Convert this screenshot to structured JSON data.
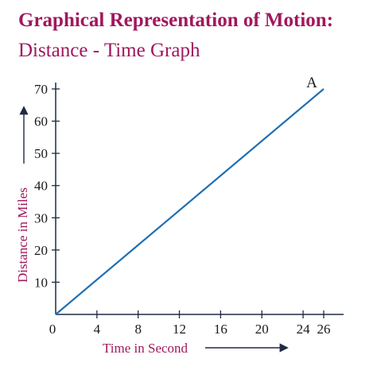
{
  "title": "Graphical Representation of Motion:",
  "subtitle": "Distance - Time Graph",
  "colors": {
    "accent": "#a0185e",
    "line": "#1f6fb2",
    "axis": "#1f2a44",
    "text": "#1a1a1a"
  },
  "chart_data": {
    "type": "line",
    "xlabel": "Time in Second",
    "ylabel": "Distance in Miles",
    "x_ticks": [
      0,
      4,
      8,
      12,
      16,
      20,
      24,
      26
    ],
    "y_ticks": [
      10,
      20,
      30,
      40,
      50,
      60,
      70
    ],
    "origin_label": "0",
    "xlim": [
      0,
      26
    ],
    "ylim": [
      0,
      70
    ],
    "grid": false,
    "series": [
      {
        "x": [
          0,
          26
        ],
        "y": [
          0,
          70
        ]
      }
    ],
    "annotations": [
      {
        "text": "A",
        "x": 26,
        "y": 70
      }
    ]
  }
}
